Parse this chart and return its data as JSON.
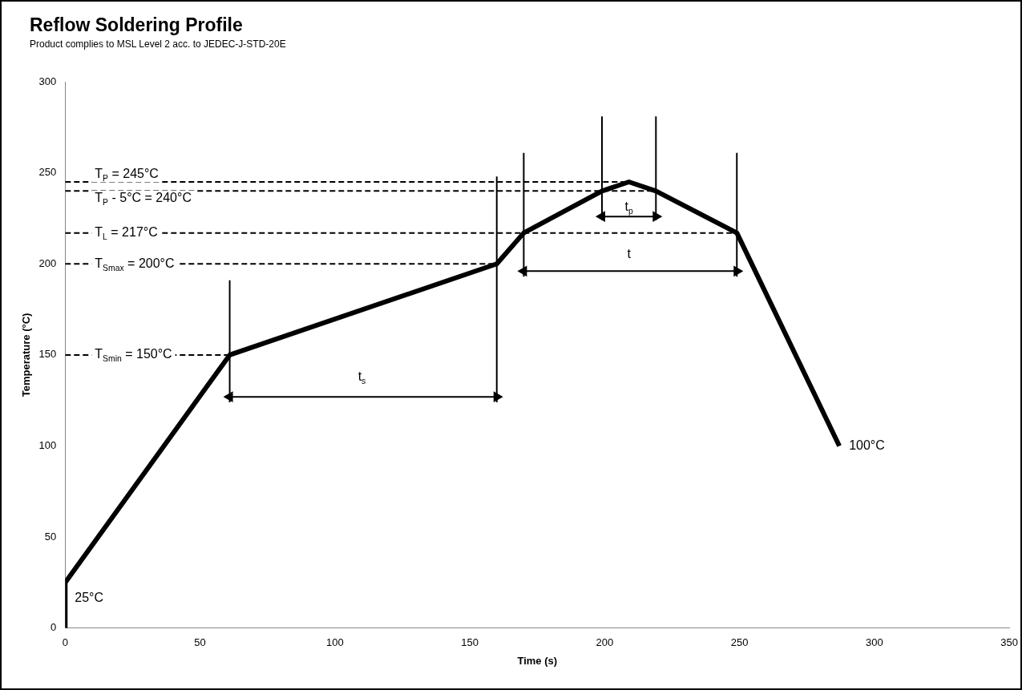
{
  "chart_data": {
    "type": "line",
    "title": "Reflow Soldering Profile",
    "subtitle": "Product complies to MSL Level 2 acc. to JEDEC-J-STD-20E",
    "xlabel": "Time (s)",
    "ylabel": "Temperature (°C)",
    "xlim": [
      0,
      350
    ],
    "xticks": [
      0,
      50,
      100,
      150,
      200,
      250,
      300,
      350
    ],
    "ylim": [
      0,
      300
    ],
    "yticks": [
      0,
      50,
      100,
      150,
      200,
      250,
      300
    ],
    "grid": false,
    "legend": false,
    "marker": "none",
    "series": [
      {
        "color": "#000000",
        "x": [
          0,
          0,
          61,
          160,
          170,
          199,
          209,
          219,
          249,
          287
        ],
        "values": [
          0,
          25,
          150,
          200,
          217,
          240,
          245,
          240,
          217,
          100
        ]
      },
      {
        "color": "#000000",
        "line_style": "dashed",
        "x": [
          0,
          209
        ],
        "values": [
          245,
          245
        ]
      },
      {
        "color": "#000000",
        "line_style": "dashed",
        "x": [
          0,
          219
        ],
        "values": [
          240,
          240
        ]
      },
      {
        "color": "#000000",
        "line_style": "dashed",
        "x": [
          0,
          249
        ],
        "values": [
          217,
          217
        ]
      },
      {
        "color": "#000000",
        "line_style": "dashed",
        "x": [
          0,
          160
        ],
        "values": [
          200,
          200
        ]
      },
      {
        "color": "#000000",
        "line_style": "dashed",
        "x": [
          0,
          61
        ],
        "values": [
          150,
          150
        ]
      },
      {
        "color": "#000000",
        "x": [
          61,
          61
        ],
        "values": [
          124,
          191
        ]
      },
      {
        "color": "#000000",
        "x": [
          160,
          160
        ],
        "values": [
          124,
          248
        ]
      },
      {
        "color": "#000000",
        "x": [
          170,
          170
        ],
        "values": [
          193,
          261
        ]
      },
      {
        "color": "#000000",
        "x": [
          249,
          249
        ],
        "values": [
          193,
          261
        ]
      },
      {
        "color": "#000000",
        "x": [
          199,
          199
        ],
        "values": [
          224,
          281
        ]
      },
      {
        "color": "#000000",
        "x": [
          219,
          219
        ],
        "values": [
          224,
          281
        ]
      },
      {
        "color": "#000000",
        "marker": "triangle",
        "x": [
          61,
          160
        ],
        "values": [
          127,
          127
        ]
      },
      {
        "color": "#000000",
        "marker": "triangle",
        "x": [
          170,
          249
        ],
        "values": [
          196,
          196
        ]
      },
      {
        "color": "#000000",
        "marker": "triangle",
        "x": [
          199,
          219
        ],
        "values": [
          226,
          226
        ]
      }
    ],
    "annotations": [
      {
        "text": "T$_{P}$ = 245°C",
        "x": 11,
        "y": 245
      },
      {
        "text": "T$_{P}$ - 5°C = 240°C",
        "x": 11,
        "y": 240
      },
      {
        "text": "T$_{L}$ = 217°C",
        "x": 11,
        "y": 217
      },
      {
        "text": "T$_{Smax}$ = 200°C",
        "x": 11,
        "y": 200
      },
      {
        "text": "T$_{Smin}$ = 150°C",
        "x": 11,
        "y": 150
      },
      {
        "text": "t$_{s}$",
        "x": 110,
        "y": 138
      },
      {
        "text": "t",
        "x": 209,
        "y": 205
      },
      {
        "text": "t$_{p}$",
        "x": 209,
        "y": 231
      },
      {
        "text": "25°C",
        "x": 0,
        "y": 25
      },
      {
        "text": "100°C",
        "x": 287,
        "y": 100
      }
    ]
  }
}
